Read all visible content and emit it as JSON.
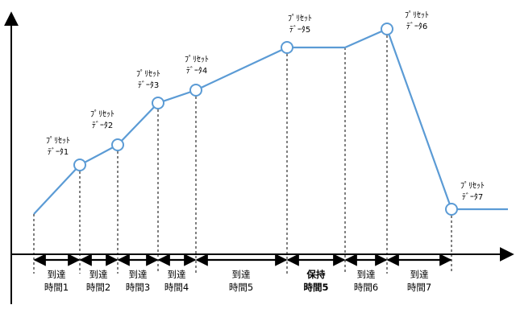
{
  "colors": {
    "profile_line": "#5b9bd5",
    "marker_fill": "#ffffff",
    "axis": "#000000",
    "guide": "#000000"
  },
  "points": [
    {
      "line1": "",
      "line2": ""
    },
    {
      "line1": "ﾌﾟﾘｾｯﾄ",
      "line2": "ﾃﾞｰﾀ1"
    },
    {
      "line1": "ﾌﾟﾘｾｯﾄ",
      "line2": "ﾃﾞｰﾀ2"
    },
    {
      "line1": "ﾌﾟﾘｾｯﾄ",
      "line2": "ﾃﾞｰﾀ3"
    },
    {
      "line1": "ﾌﾟﾘｾｯﾄ",
      "line2": "ﾃﾞｰﾀ4"
    },
    {
      "line1": "ﾌﾟﾘｾｯﾄ",
      "line2": "ﾃﾞｰﾀ5"
    },
    {
      "line1": "",
      "line2": ""
    },
    {
      "line1": "ﾌﾟﾘｾｯﾄ",
      "line2": "ﾃﾞｰﾀ6"
    },
    {
      "line1": "ﾌﾟﾘｾｯﾄ",
      "line2": "ﾃﾞｰﾀ7"
    },
    {
      "line1": "",
      "line2": ""
    }
  ],
  "segments": [
    {
      "line1": "到達",
      "line2": "時間1",
      "bold": false
    },
    {
      "line1": "到達",
      "line2": "時間2",
      "bold": false
    },
    {
      "line1": "到達",
      "line2": "時間3",
      "bold": false
    },
    {
      "line1": "到達",
      "line2": "時間4",
      "bold": false
    },
    {
      "line1": "到達",
      "line2": "時間5",
      "bold": false
    },
    {
      "line1": "保持",
      "line2": "時間5",
      "bold": true
    },
    {
      "line1": "到達",
      "line2": "時間6",
      "bold": false
    },
    {
      "line1": "到達",
      "line2": "時間7",
      "bold": false
    }
  ]
}
